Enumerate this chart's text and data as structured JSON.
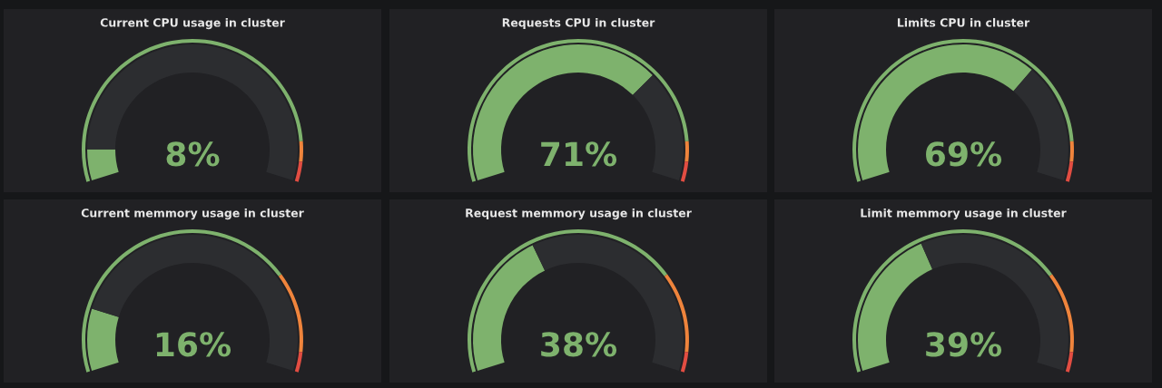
{
  "chart_data": [
    {
      "type": "donut",
      "title": "Current CPU usage in cluster",
      "annotations": [
        "8%"
      ],
      "series": [
        {
          "values": [
            8,
            92
          ],
          "colors": [
            "#7eb26d",
            "#2c2d30"
          ]
        },
        {
          "values": [
            90,
            5,
            5
          ],
          "colors": [
            "#7eb26d",
            "#ef843c",
            "#e24d42"
          ]
        }
      ]
    },
    {
      "type": "donut",
      "title": "Requests CPU in cluster",
      "annotations": [
        "71%"
      ],
      "series": [
        {
          "values": [
            71,
            29
          ],
          "colors": [
            "#7eb26d",
            "#2c2d30"
          ]
        },
        {
          "values": [
            90,
            5,
            5
          ],
          "colors": [
            "#7eb26d",
            "#ef843c",
            "#e24d42"
          ]
        }
      ]
    },
    {
      "type": "donut",
      "title": "Limits CPU in cluster",
      "annotations": [
        "69%"
      ],
      "series": [
        {
          "values": [
            69,
            31
          ],
          "colors": [
            "#7eb26d",
            "#2c2d30"
          ]
        },
        {
          "values": [
            90,
            5,
            5
          ],
          "colors": [
            "#7eb26d",
            "#ef843c",
            "#e24d42"
          ]
        }
      ]
    },
    {
      "type": "donut",
      "title": "Current memmory usage in cluster",
      "annotations": [
        "16%"
      ],
      "series": [
        {
          "values": [
            16,
            84
          ],
          "colors": [
            "#7eb26d",
            "#2c2d30"
          ]
        },
        {
          "values": [
            75,
            20,
            5
          ],
          "colors": [
            "#7eb26d",
            "#ef843c",
            "#e24d42"
          ]
        }
      ]
    },
    {
      "type": "donut",
      "title": "Request memmory usage in cluster",
      "annotations": [
        "38%"
      ],
      "series": [
        {
          "values": [
            38,
            62
          ],
          "colors": [
            "#7eb26d",
            "#2c2d30"
          ]
        },
        {
          "values": [
            75,
            20,
            5
          ],
          "colors": [
            "#7eb26d",
            "#ef843c",
            "#e24d42"
          ]
        }
      ]
    },
    {
      "type": "donut",
      "title": "Limit memmory usage in cluster",
      "annotations": [
        "39%"
      ],
      "series": [
        {
          "values": [
            39,
            61
          ],
          "colors": [
            "#7eb26d",
            "#2c2d30"
          ]
        },
        {
          "values": [
            75,
            20,
            5
          ],
          "colors": [
            "#7eb26d",
            "#ef843c",
            "#e24d42"
          ]
        }
      ]
    }
  ]
}
